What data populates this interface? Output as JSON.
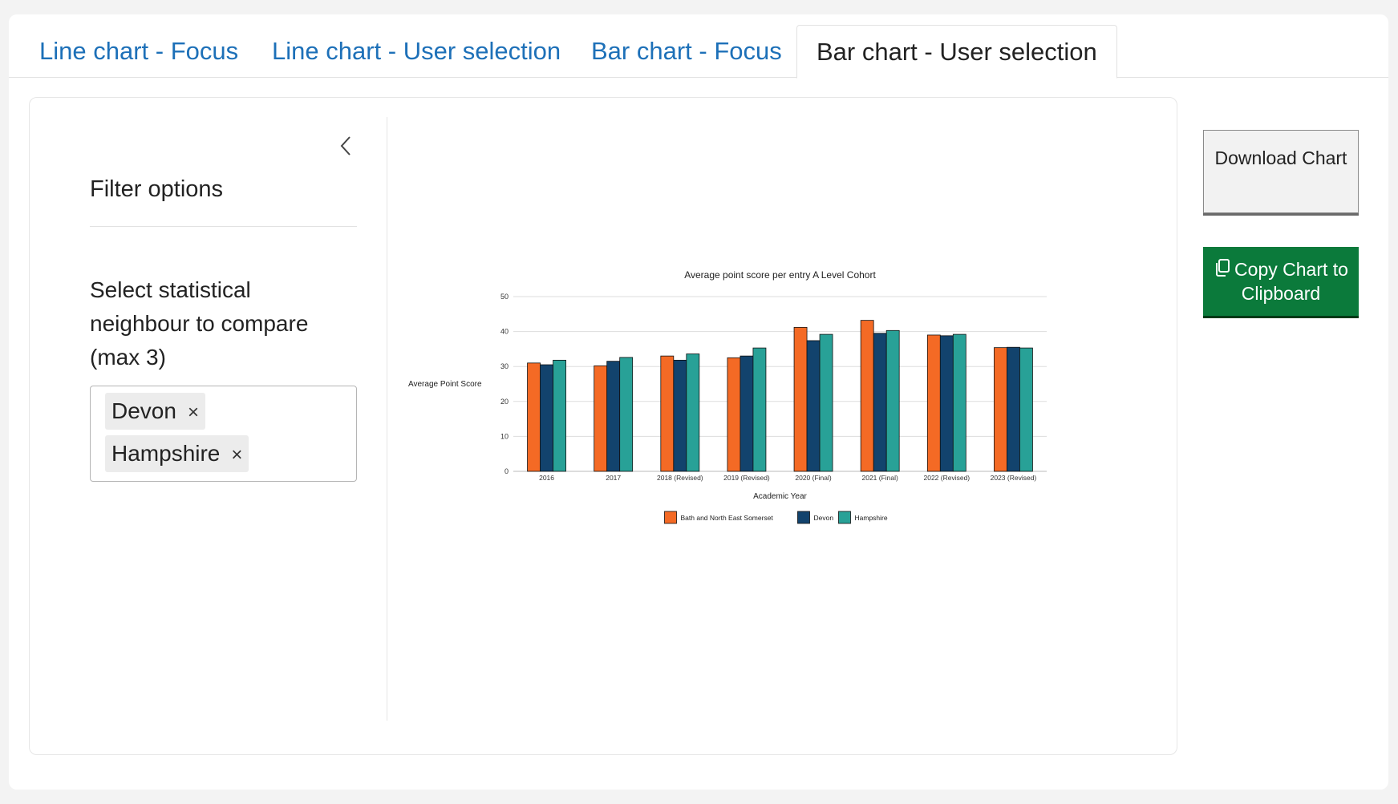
{
  "tabs": [
    {
      "label": "Line chart - Focus",
      "active": false
    },
    {
      "label": "Line chart - User selection",
      "active": false
    },
    {
      "label": "Bar chart - Focus",
      "active": false
    },
    {
      "label": "Bar chart - User selection",
      "active": true
    }
  ],
  "sidebar": {
    "title": "Filter options",
    "select_label": "Select statistical neighbour to compare (max 3)",
    "selected": [
      "Devon",
      "Hampshire"
    ],
    "remove_glyph": "×",
    "collapse_icon": "chevron-left-icon"
  },
  "buttons": {
    "download_label": "Download Chart",
    "copy_label": "Copy Chart to Clipboard",
    "copy_icon": "copy-icon",
    "copy_color": "#0b7a3b"
  },
  "chart_data": {
    "type": "bar",
    "title": "Average point score per entry A Level Cohort",
    "xlabel": "Academic Year",
    "ylabel": "Average Point Score",
    "ylim": [
      0,
      50
    ],
    "yticks": [
      0,
      10,
      20,
      30,
      40,
      50
    ],
    "grid": true,
    "legend_position": "bottom",
    "categories": [
      "2016",
      "2017",
      "2018 (Revised)",
      "2019 (Revised)",
      "2020 (Final)",
      "2021 (Final)",
      "2022 (Revised)",
      "2023 (Revised)"
    ],
    "series": [
      {
        "name": "Bath and North East Somerset",
        "color": "#f46a25",
        "values": [
          31.0,
          30.2,
          33.0,
          32.5,
          41.2,
          43.2,
          39.0,
          35.4
        ]
      },
      {
        "name": "Devon",
        "color": "#12436d",
        "values": [
          30.5,
          31.5,
          31.8,
          33.0,
          37.4,
          39.5,
          38.8,
          35.5
        ]
      },
      {
        "name": "Hampshire",
        "color": "#28a197",
        "values": [
          31.8,
          32.6,
          33.6,
          35.3,
          39.2,
          40.3,
          39.2,
          35.3
        ]
      }
    ]
  }
}
